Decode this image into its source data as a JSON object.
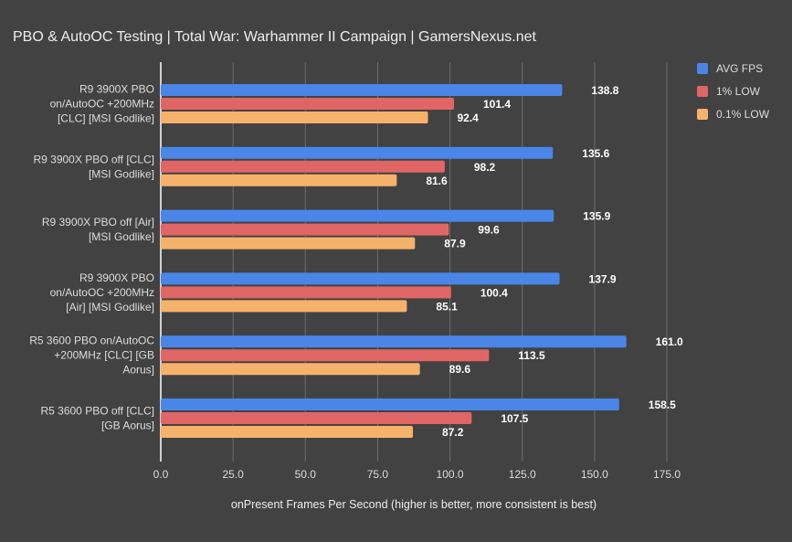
{
  "chart_data": {
    "type": "bar",
    "orientation": "horizontal",
    "title": "PBO & AutoOC Testing | Total War: Warhammer II Campaign | GamersNexus.net",
    "xlabel": "onPresent Frames Per Second (higher is better, more consistent is best)",
    "ylabel": "",
    "xlim": [
      0,
      175
    ],
    "xticks": [
      "0.0",
      "25.0",
      "50.0",
      "75.0",
      "100.0",
      "125.0",
      "150.0",
      "175.0"
    ],
    "grid": true,
    "legend_position": "top-right",
    "categories": [
      [
        "R9 3900X PBO",
        "on/AutoOC +200MHz",
        "[CLC] [MSI Godlike]"
      ],
      [
        "R9 3900X PBO off [CLC]",
        "[MSI Godlike]"
      ],
      [
        "R9 3900X PBO off [Air]",
        "[MSI Godlike]"
      ],
      [
        "R9 3900X PBO",
        "on/AutoOC +200MHz",
        "[Air] [MSI Godlike]"
      ],
      [
        "R5 3600 PBO on/AutoOC",
        "+200MHz [CLC] [GB",
        "Aorus]"
      ],
      [
        "R5 3600 PBO off [CLC]",
        "[GB Aorus]"
      ]
    ],
    "series": [
      {
        "name": "AVG FPS",
        "color": "#4a86e8",
        "values": [
          138.8,
          135.6,
          135.9,
          137.9,
          161.0,
          158.5
        ]
      },
      {
        "name": "1% LOW",
        "color": "#e06666",
        "values": [
          101.4,
          98.2,
          99.6,
          100.4,
          113.5,
          107.5
        ]
      },
      {
        "name": "0.1% LOW",
        "color": "#f6b26b",
        "values": [
          92.4,
          81.6,
          87.9,
          85.1,
          89.6,
          87.2
        ]
      }
    ]
  }
}
